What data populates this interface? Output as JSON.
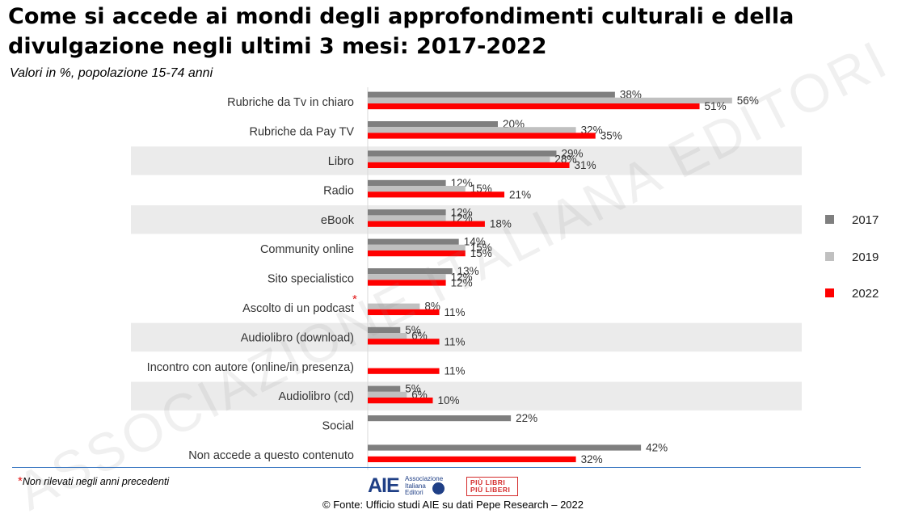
{
  "title": "Come si accede ai mondi degli approfondimenti culturali e della divulgazione negli ultimi 3 mesi: 2017-2022",
  "subtitle": "Valori in %, popolazione 15-74 anni",
  "watermark": "ASSOCIAZIONE ITALIANA EDITORI",
  "note": "Non rilevati negli anni precedenti",
  "note_marker": "*",
  "source": "© Fonte: Ufficio studi AIE su dati Pepe Research – 2022",
  "logos": {
    "aie_mark": "AIE",
    "aie_text": [
      "Associazione",
      "Italiana",
      "Editori"
    ],
    "ppl_text": [
      "PIÙ LIBRI",
      "PIÙ LIBERI"
    ]
  },
  "colors": {
    "2017": "#7f7f7f",
    "2019": "#c0c0c0",
    "2022": "#ff0000",
    "band": "#ebebeb",
    "asterisk": "#e21313"
  },
  "chart_data": {
    "type": "bar",
    "orientation": "horizontal",
    "categories": [
      "Rubriche da Tv in chiaro",
      "Rubriche da Pay TV",
      "Libro",
      "Radio",
      "eBook",
      "Community online",
      "Sito specialistico",
      "Ascolto di un podcast",
      "Audiolibro (download)",
      "Incontro con autore (online/in presenza)",
      "Audiolibro (cd)",
      "Social",
      "Non accede a questo contenuto"
    ],
    "category_markers": [
      "",
      "",
      "",
      "",
      "",
      "",
      "",
      "*",
      "",
      "",
      "",
      "",
      ""
    ],
    "series": [
      {
        "name": "2017",
        "values": [
          38,
          20,
          29,
          12,
          12,
          14,
          13,
          null,
          5,
          null,
          5,
          22,
          42
        ]
      },
      {
        "name": "2019",
        "values": [
          56,
          32,
          28,
          15,
          12,
          15,
          12,
          8,
          6,
          null,
          6,
          null,
          null
        ]
      },
      {
        "name": "2022",
        "values": [
          51,
          35,
          31,
          21,
          18,
          15,
          12,
          11,
          11,
          11,
          10,
          null,
          32
        ]
      }
    ],
    "value_suffix": "%",
    "shaded_rows": [
      2,
      4,
      8,
      10
    ],
    "legend_position": "right",
    "xlim": [
      0,
      60
    ]
  }
}
